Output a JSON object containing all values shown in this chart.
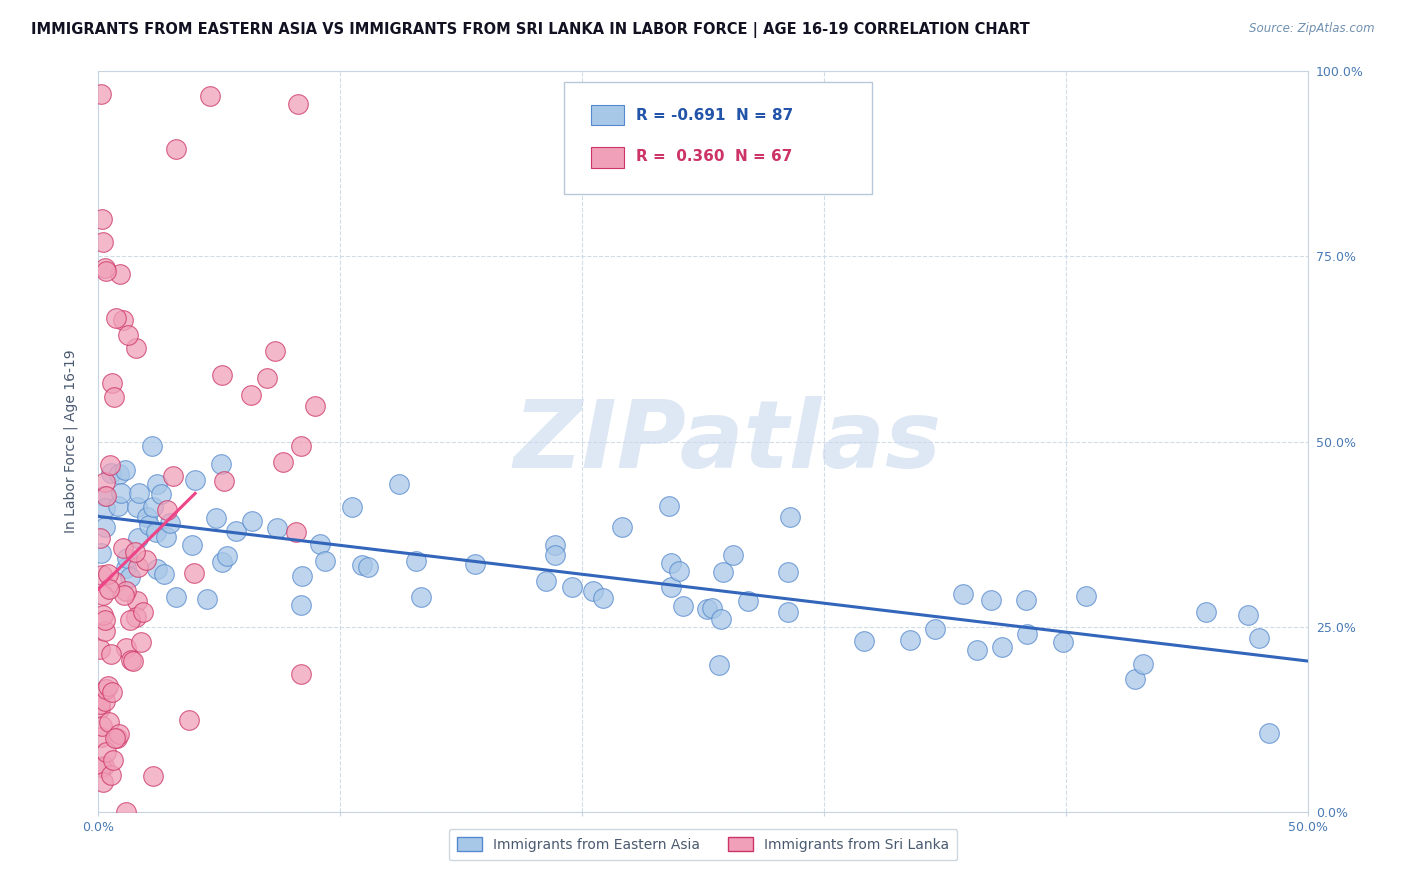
{
  "title": "IMMIGRANTS FROM EASTERN ASIA VS IMMIGRANTS FROM SRI LANKA IN LABOR FORCE | AGE 16-19 CORRELATION CHART",
  "source": "Source: ZipAtlas.com",
  "xlabel": "",
  "ylabel": "In Labor Force | Age 16-19",
  "xlim": [
    0.0,
    0.5
  ],
  "ylim": [
    0.0,
    1.0
  ],
  "xticks": [
    0.0,
    0.1,
    0.2,
    0.3,
    0.4,
    0.5
  ],
  "xticklabels": [
    "0.0%",
    "",
    "",
    "",
    "",
    "50.0%"
  ],
  "yticks": [
    0.0,
    0.25,
    0.5,
    0.75,
    1.0
  ],
  "yticklabels_left": [
    "",
    "",
    "",
    "",
    ""
  ],
  "yticklabels_right": [
    "0.0%",
    "25.0%",
    "50.0%",
    "75.0%",
    "100.0%"
  ],
  "blue_color": "#a8c8e8",
  "pink_color": "#f0a0b8",
  "blue_line_color": "#3366bb",
  "pink_line_color": "#ee4488",
  "blue_edge_color": "#5588cc",
  "pink_edge_color": "#cc3366",
  "legend_blue_text": "R = -0.691  N = 87",
  "legend_pink_text": "R =  0.360  N = 67",
  "watermark": "ZIPatlas",
  "watermark_color": "#c8d8ee",
  "background_color": "#ffffff",
  "grid_color": "#d0dce8",
  "title_fontsize": 10.5,
  "axis_fontsize": 10,
  "tick_fontsize": 9,
  "legend_fontsize": 11
}
